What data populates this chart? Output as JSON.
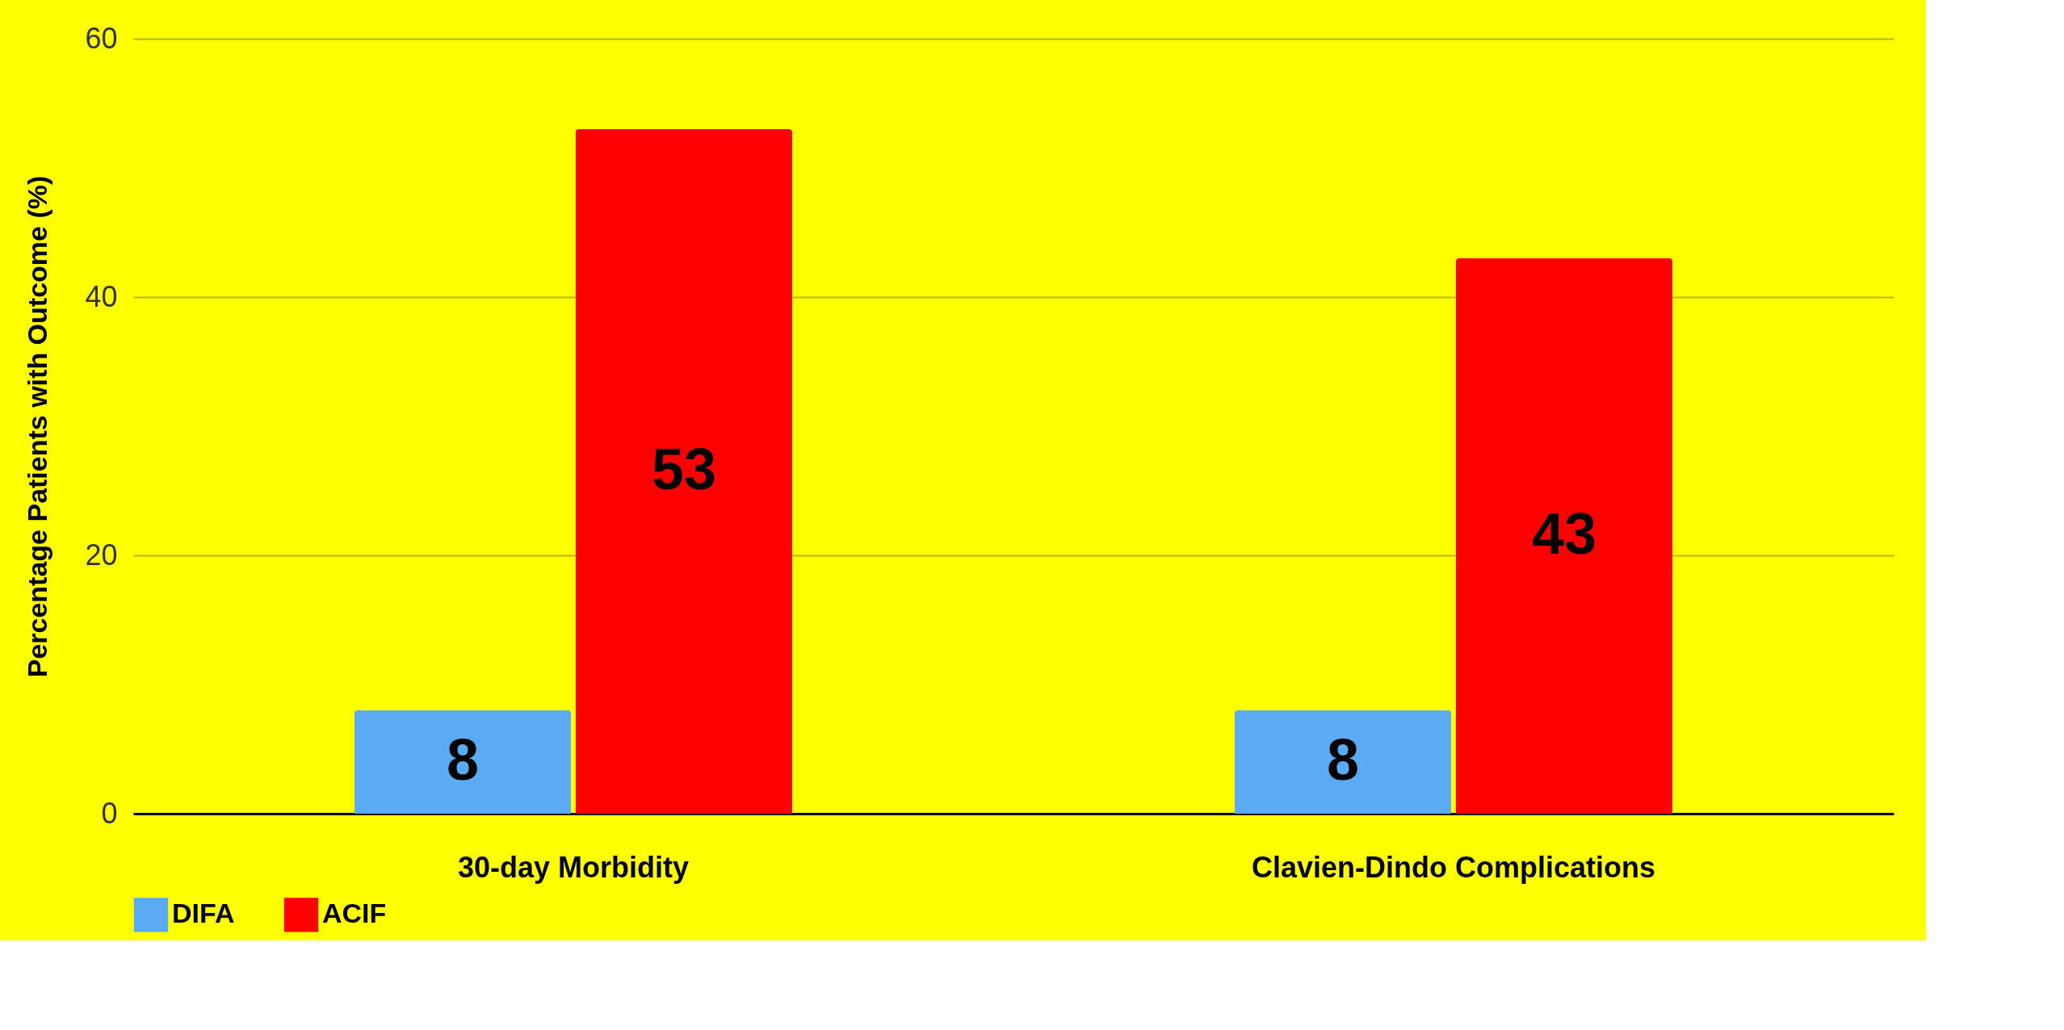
{
  "chart_data": {
    "type": "bar",
    "ylabel": "Percentage Patients with Outcome (%)",
    "categories": [
      "30-day Morbidity",
      "Clavien-Dindo Complications"
    ],
    "series": [
      {
        "name": "DIFA",
        "color": "#5aabf3",
        "values": [
          8,
          8
        ]
      },
      {
        "name": "ACIF",
        "color": "#ff0000",
        "values": [
          53,
          43
        ]
      }
    ],
    "ylim": [
      0,
      60
    ],
    "yticks": [
      0,
      20,
      40,
      60
    ],
    "grid": "y",
    "legend": "bottom",
    "data_labels": true
  }
}
